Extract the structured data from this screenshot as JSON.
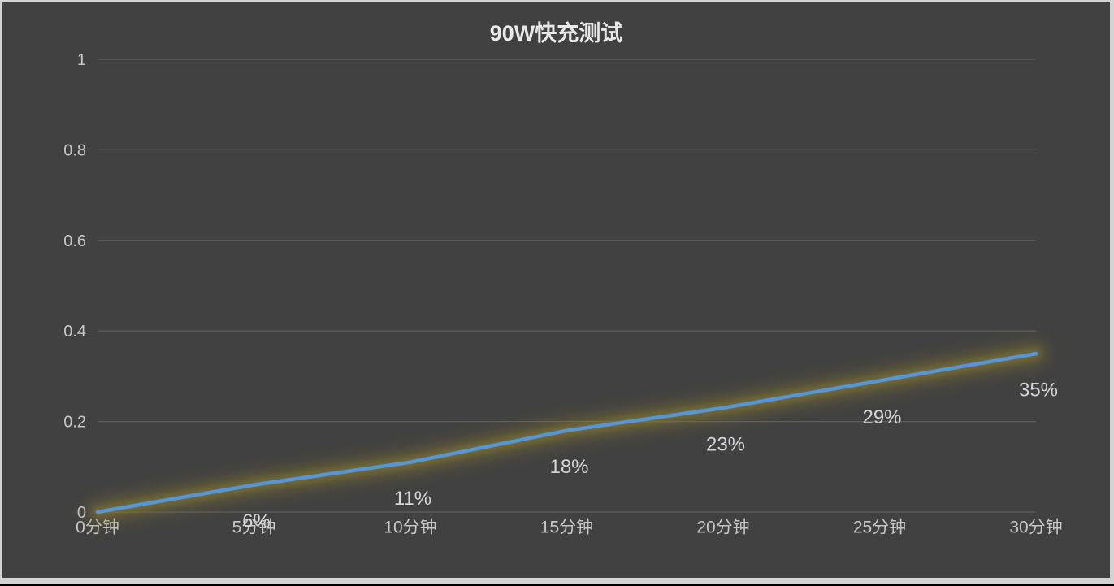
{
  "chart_data": {
    "type": "line",
    "title": "90W快充测试",
    "categories": [
      "0分钟",
      "5分钟",
      "10分钟",
      "15分钟",
      "20分钟",
      "25分钟",
      "30分钟"
    ],
    "values": [
      0,
      0.06,
      0.11,
      0.18,
      0.23,
      0.29,
      0.35
    ],
    "point_labels": [
      "",
      "6%",
      "11%",
      "18%",
      "23%",
      "29%",
      "35%"
    ],
    "xlabel": "",
    "ylabel": "",
    "ylim": [
      0,
      1
    ],
    "ytick_values": [
      0,
      0.2,
      0.4,
      0.6,
      0.8,
      1
    ],
    "ytick_labels": [
      "0",
      "0.2",
      "0.4",
      "0.6",
      "0.8",
      "1"
    ],
    "grid": true,
    "legend": false,
    "colors": {
      "line": "#5596d8",
      "glow": "#8a7d2e",
      "background": "#414141",
      "frame": "#d3d3d3",
      "gridline": "#5d5d5d",
      "title_text": "#e9e9e9",
      "axis_text": "#c6c6c6",
      "data_label_text": "#d4d4d4"
    }
  }
}
